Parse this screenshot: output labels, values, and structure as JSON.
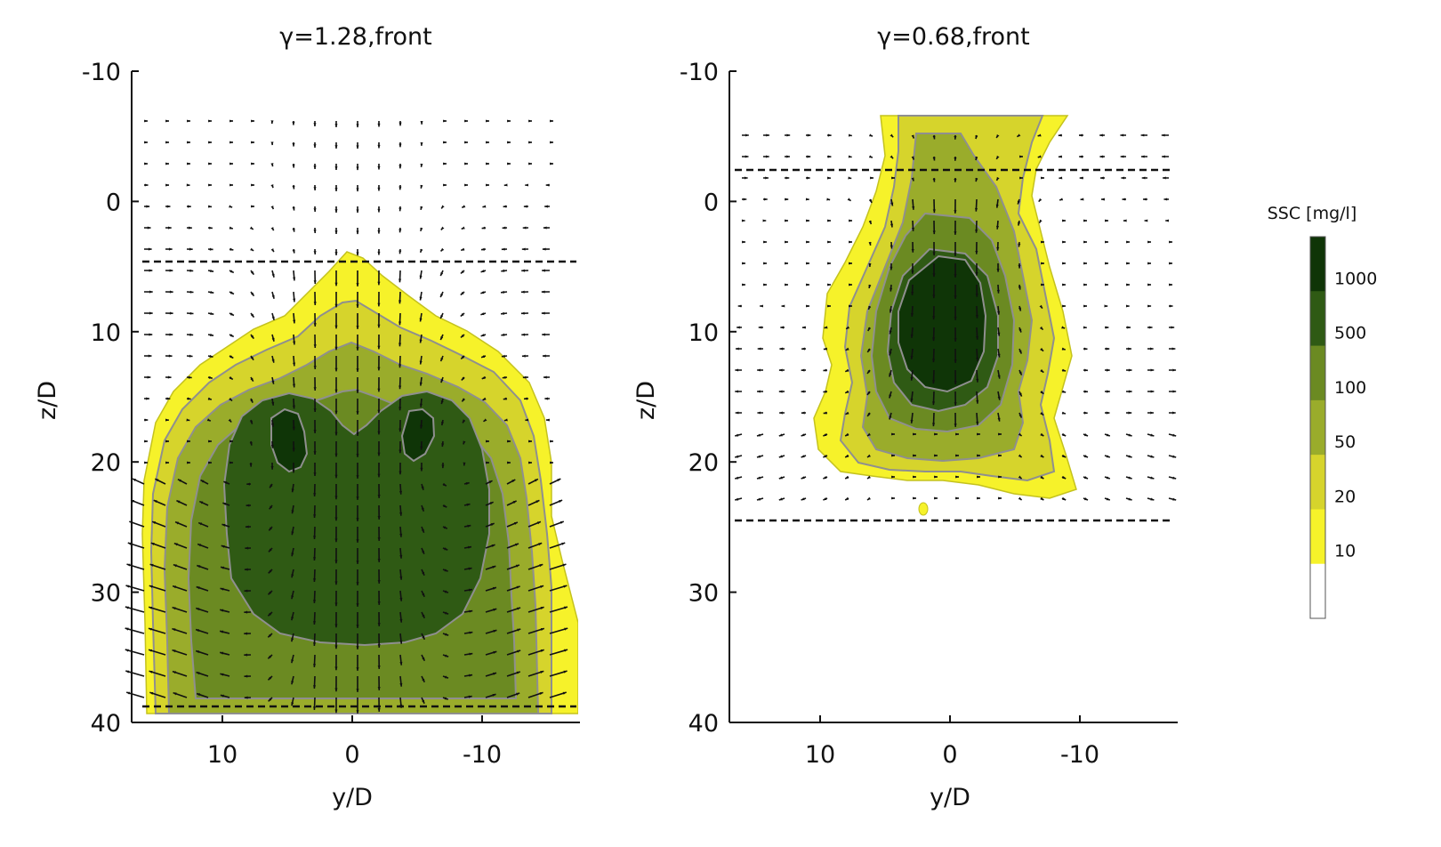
{
  "chart_data": [
    {
      "type": "contour",
      "title": "γ=1.28,front",
      "xlabel": "y/D",
      "ylabel": "z/D",
      "xlim": [
        17,
        -17
      ],
      "ylim": [
        40,
        -10
      ],
      "xticks": [
        10,
        0,
        -10
      ],
      "yticks": [
        -10,
        0,
        10,
        20,
        30,
        40
      ],
      "dashed_lines_z": [
        4.5,
        39
      ],
      "contour_levels": [
        {
          "level": 10,
          "ridge_top_z": 4.5,
          "ridge_bottom_z": 39,
          "half_width_y": 16
        },
        {
          "level": 20,
          "ridge_top_z": 6,
          "ridge_bottom_z": 39,
          "half_width_y": 15
        },
        {
          "level": 50,
          "ridge_top_z": 9,
          "ridge_bottom_z": 39,
          "half_width_y": 14
        },
        {
          "level": 100,
          "ridge_top_z": 11,
          "ridge_bottom_z": 36,
          "half_width_y": 12
        },
        {
          "level": 500,
          "ridge_top_z": 14,
          "ridge_bottom_z": 34,
          "half_width_y": 10
        },
        {
          "level": 1000,
          "cores": [
            {
              "y": 5,
              "z": 17.5
            },
            {
              "y": -5,
              "z": 17.5
            }
          ]
        }
      ]
    },
    {
      "type": "contour",
      "title": "γ=0.68,front",
      "xlabel": "y/D",
      "ylabel": "z/D",
      "xlim": [
        17,
        -17
      ],
      "ylim": [
        40,
        -10
      ],
      "xticks": [
        10,
        0,
        -10
      ],
      "yticks": [
        -10,
        0,
        10,
        20,
        30,
        40
      ],
      "dashed_lines_z": [
        -2.5,
        24.5
      ],
      "contour_levels": [
        {
          "level": 10,
          "center_y": 0,
          "center_z": 10,
          "half_width_y": 10,
          "bottom_z": 21
        },
        {
          "level": 20,
          "center_y": 0,
          "center_z": 10,
          "half_width_y": 9,
          "bottom_z": 20
        },
        {
          "level": 50,
          "center_y": 0,
          "center_z": 10,
          "half_width_y": 7,
          "bottom_z": 18
        },
        {
          "level": 100,
          "center_y": 0,
          "center_z": 10,
          "half_width_y": 5.5,
          "bottom_z": 17
        },
        {
          "level": 500,
          "center_y": 0,
          "center_z": 10,
          "half_width_y": 4.5,
          "bottom_z": 15
        },
        {
          "level": 1000,
          "center_y": 0,
          "center_z": 9,
          "half_width_y": 3,
          "bottom_z": 13
        }
      ]
    }
  ],
  "colorbar": {
    "label": "SSC [mg/l]",
    "levels": [
      "10",
      "20",
      "50",
      "100",
      "500",
      "1000"
    ],
    "colors": [
      "#ffffff",
      "#f6f22a",
      "#d6d42c",
      "#9aac2b",
      "#6b8a22",
      "#2f5a14",
      "#0f3507"
    ]
  }
}
